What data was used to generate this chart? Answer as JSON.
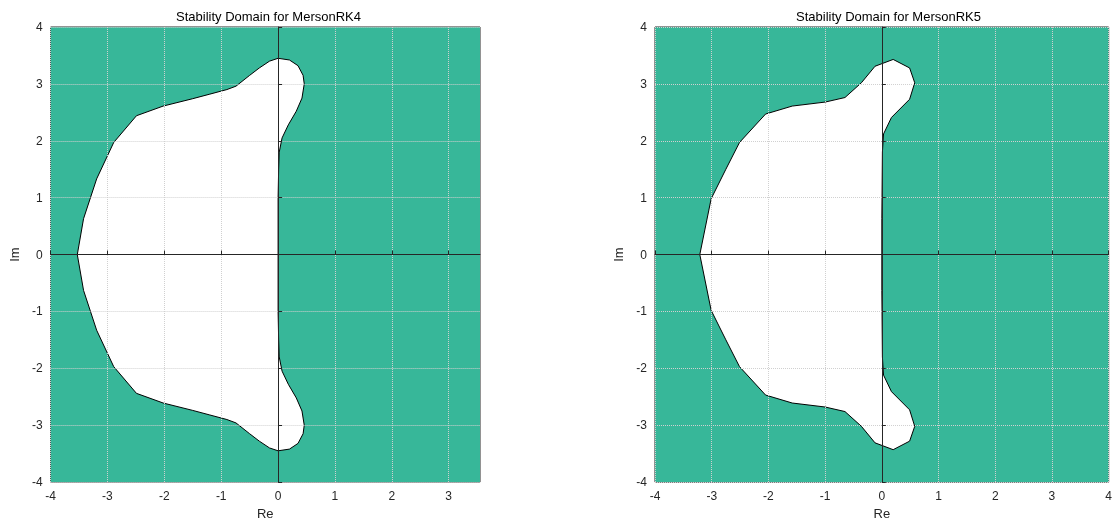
{
  "chart_data": [
    {
      "type": "area",
      "title": "Stability Domain for MersonRK4",
      "xlabel": "Re",
      "ylabel": "Im",
      "xlim": [
        -4,
        3.55
      ],
      "ylim": [
        -4,
        4
      ],
      "xticks": [
        -4,
        -3,
        -2,
        -1,
        0,
        1,
        2,
        3
      ],
      "yticks": [
        -4,
        -3,
        -2,
        -1,
        0,
        1,
        2,
        3,
        4
      ],
      "grid": true,
      "bands": [
        {
          "axis": "x",
          "from": -4,
          "to": 3.55,
          "color": "#37b799"
        }
      ],
      "series": [
        {
          "color": "#ffffff",
          "x": [
            -3.53,
            -3.42,
            -3.19,
            -2.89,
            -2.49,
            -2.02,
            -1.5,
            -1.2,
            -0.9,
            -0.74,
            -0.5,
            -0.33,
            -0.15,
            0,
            0.2,
            0.35,
            0.44,
            0.46,
            0.42,
            0.32,
            0.18,
            0.07,
            0.02,
            0.01,
            0,
            0,
            0,
            0.01,
            0.02,
            0.07,
            0.18,
            0.32,
            0.42,
            0.46,
            0.44,
            0.35,
            0.2,
            0,
            -0.15,
            -0.33,
            -0.5,
            -0.74,
            -0.9,
            -1.2,
            -1.5,
            -2.02,
            -2.49,
            -2.89,
            -3.19,
            -3.42,
            -3.53
          ],
          "values": [
            0,
            0.63,
            1.33,
            1.97,
            2.44,
            2.61,
            2.74,
            2.82,
            2.9,
            2.96,
            3.15,
            3.28,
            3.4,
            3.45,
            3.42,
            3.32,
            3.15,
            3.0,
            2.75,
            2.52,
            2.28,
            2.05,
            1.8,
            1.5,
            1.0,
            0,
            -1.0,
            -1.5,
            -1.8,
            -2.05,
            -2.28,
            -2.52,
            -2.75,
            -3.0,
            -3.15,
            -3.32,
            -3.42,
            -3.45,
            -3.4,
            -3.28,
            -3.15,
            -2.96,
            -2.9,
            -2.82,
            -2.74,
            -2.61,
            -2.44,
            -1.97,
            -1.33,
            -0.63,
            0
          ]
        }
      ]
    },
    {
      "type": "area",
      "title": "Stability Domain for MersonRK5",
      "xlabel": "Re",
      "ylabel": "Im",
      "xlim": [
        -4,
        4
      ],
      "ylim": [
        -4,
        4
      ],
      "xticks": [
        -4,
        -3,
        -2,
        -1,
        0,
        1,
        2,
        3,
        4
      ],
      "yticks": [
        -4,
        -3,
        -2,
        -1,
        0,
        1,
        2,
        3,
        4
      ],
      "grid": true,
      "bands": [
        {
          "axis": "x",
          "from": -4,
          "to": 4,
          "color": "#37b799"
        }
      ],
      "series": [
        {
          "color": "#ffffff",
          "x": [
            -3.21,
            -3.01,
            -2.75,
            -2.51,
            -2.05,
            -1.58,
            -1.0,
            -0.65,
            -0.36,
            -0.12,
            0.2,
            0.49,
            0.58,
            0.49,
            0.17,
            0.03,
            0.01,
            0,
            0,
            0,
            0.01,
            0.03,
            0.17,
            0.49,
            0.58,
            0.49,
            0.2,
            -0.12,
            -0.36,
            -0.65,
            -1.0,
            -1.58,
            -2.05,
            -2.51,
            -2.75,
            -3.01,
            -3.21
          ],
          "values": [
            0,
            0.98,
            1.5,
            1.97,
            2.47,
            2.61,
            2.68,
            2.76,
            3.02,
            3.31,
            3.43,
            3.28,
            3.02,
            2.73,
            2.41,
            2.12,
            1.8,
            0.63,
            0,
            -0.63,
            -1.8,
            -2.12,
            -2.41,
            -2.73,
            -3.02,
            -3.28,
            -3.43,
            -3.31,
            -3.02,
            -2.76,
            -2.68,
            -2.61,
            -2.47,
            -1.97,
            -1.5,
            -0.98,
            0
          ]
        }
      ]
    }
  ]
}
